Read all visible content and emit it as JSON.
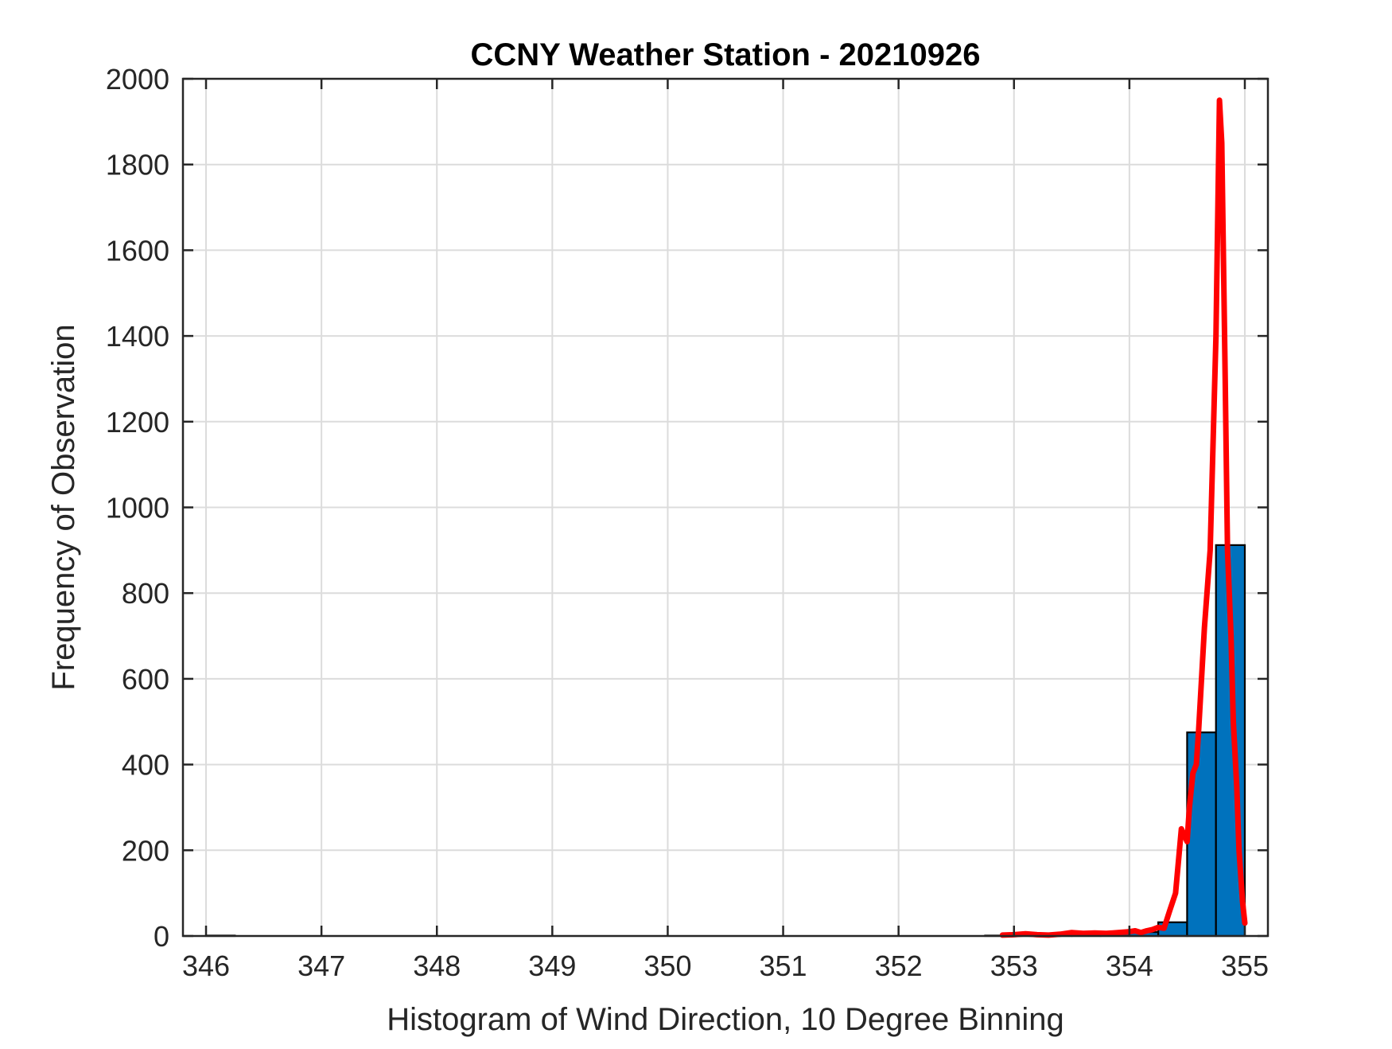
{
  "chart_data": {
    "type": "bar",
    "title": "CCNY Weather Station - 20210926",
    "xlabel": "Histogram of Wind Direction, 10 Degree Binning",
    "ylabel": "Frequency of Observation",
    "xlim": [
      345.8,
      355.2
    ],
    "ylim": [
      0,
      2000
    ],
    "xticks": [
      346,
      347,
      348,
      349,
      350,
      351,
      352,
      353,
      354,
      355
    ],
    "yticks": [
      0,
      200,
      400,
      600,
      800,
      1000,
      1200,
      1400,
      1600,
      1800,
      2000
    ],
    "grid": true,
    "bin_width": 0.25,
    "bins": [
      {
        "x": 346.125,
        "value": 1
      },
      {
        "x": 352.875,
        "value": 1
      },
      {
        "x": 353.125,
        "value": 2
      },
      {
        "x": 353.375,
        "value": 3
      },
      {
        "x": 353.625,
        "value": 4
      },
      {
        "x": 353.875,
        "value": 6
      },
      {
        "x": 354.125,
        "value": 9
      },
      {
        "x": 354.375,
        "value": 32
      },
      {
        "x": 354.625,
        "value": 475
      },
      {
        "x": 354.875,
        "value": 912
      }
    ],
    "series": [
      {
        "type": "line",
        "color": "#ff0000",
        "x": [
          352.9,
          353.0,
          353.1,
          353.2,
          353.3,
          353.4,
          353.5,
          353.6,
          353.7,
          353.8,
          353.9,
          354.0,
          354.05,
          354.1,
          354.15,
          354.2,
          354.25,
          354.3,
          354.35,
          354.4,
          354.45,
          354.5,
          354.52,
          354.55,
          354.58,
          354.6,
          354.65,
          354.7,
          354.75,
          354.78,
          354.8,
          354.83,
          354.85,
          354.88,
          354.9,
          354.93,
          354.95,
          354.98,
          355.0
        ],
        "y": [
          2,
          3,
          5,
          3,
          2,
          4,
          8,
          6,
          7,
          6,
          8,
          10,
          12,
          8,
          12,
          15,
          20,
          18,
          60,
          100,
          250,
          220,
          300,
          380,
          400,
          480,
          720,
          900,
          1400,
          1950,
          1850,
          1300,
          900,
          700,
          500,
          350,
          200,
          80,
          30
        ]
      }
    ],
    "bar_color": "#0072bd",
    "bar_edge_color": "#000000"
  }
}
